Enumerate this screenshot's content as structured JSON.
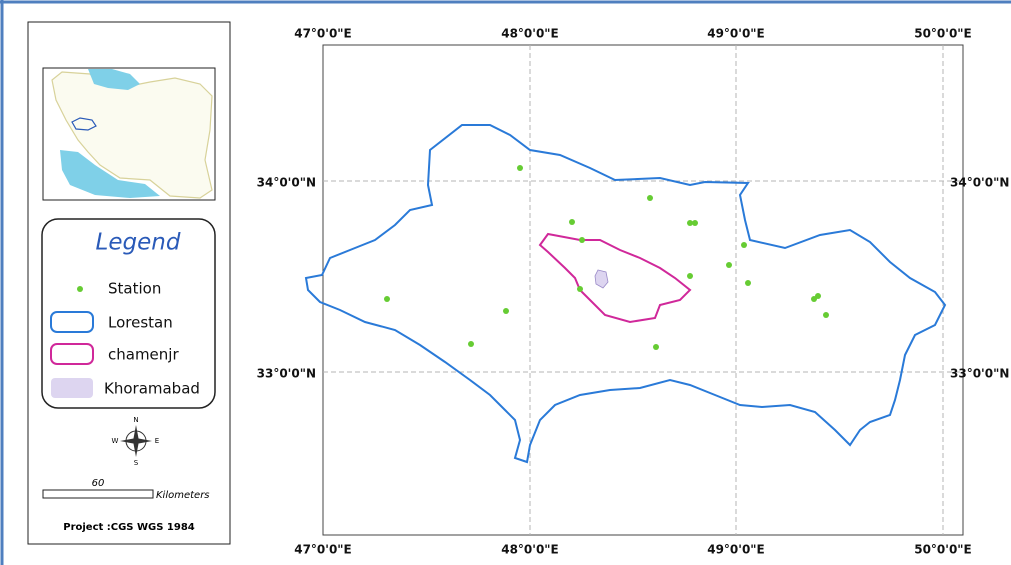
{
  "map": {
    "longitude_labels": [
      "47°0'0\"E",
      "48°0'0\"E",
      "49°0'0\"E",
      "50°0'0\"E"
    ],
    "latitude_labels": [
      "34°0'0\"N",
      "33°0'0\"N"
    ],
    "legend": {
      "title": "Legend",
      "items": [
        "Station",
        "Lorestan",
        "chamenjr",
        "Khoramabad"
      ]
    },
    "compass": {
      "north": "N",
      "east": "E",
      "south": "S",
      "west": "W"
    },
    "scale": {
      "distance": 60,
      "unit": "Kilometers"
    },
    "project": "Project :CGS  WGS 1984"
  }
}
